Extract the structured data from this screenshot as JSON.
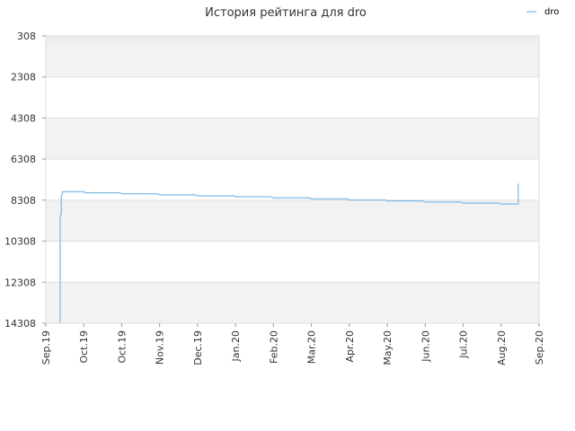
{
  "chart_data": {
    "type": "line",
    "title": "История рейтинга для dro",
    "legend": {
      "placement": "top-right",
      "entries": [
        "dro"
      ]
    },
    "ylim": [
      308,
      14308
    ],
    "y_reversed": true,
    "yticks": [
      "308",
      "2308",
      "4308",
      "6308",
      "8308",
      "10308",
      "12308",
      "14308"
    ],
    "xticks": [
      "Sep.19",
      "Oct.19",
      "Oct.19",
      "Nov.19",
      "Dec.19",
      "Jan.20",
      "Feb.20",
      "Mar.20",
      "Apr.20",
      "May.20",
      "Jun.20",
      "Jul.20",
      "Aug.20",
      "Sep.20"
    ],
    "grid": true,
    "series": [
      {
        "name": "dro",
        "color": "#90c4ee",
        "x_unit": "tick index",
        "points": [
          [
            0.38,
            14308
          ],
          [
            0.38,
            9100
          ],
          [
            0.41,
            8950
          ],
          [
            0.41,
            8100
          ],
          [
            0.45,
            7900
          ],
          [
            1.0,
            7900
          ],
          [
            1.05,
            7950
          ],
          [
            1.95,
            7950
          ],
          [
            2.0,
            8000
          ],
          [
            2.95,
            8000
          ],
          [
            3.0,
            8050
          ],
          [
            3.95,
            8050
          ],
          [
            4.0,
            8100
          ],
          [
            4.95,
            8100
          ],
          [
            5.0,
            8150
          ],
          [
            5.95,
            8150
          ],
          [
            6.0,
            8200
          ],
          [
            6.95,
            8200
          ],
          [
            7.0,
            8250
          ],
          [
            7.95,
            8250
          ],
          [
            8.0,
            8300
          ],
          [
            8.95,
            8300
          ],
          [
            9.0,
            8350
          ],
          [
            9.95,
            8350
          ],
          [
            10.0,
            8400
          ],
          [
            10.95,
            8400
          ],
          [
            11.0,
            8450
          ],
          [
            11.95,
            8450
          ],
          [
            12.0,
            8500
          ],
          [
            12.45,
            8500
          ],
          [
            12.45,
            7500
          ]
        ]
      }
    ]
  }
}
